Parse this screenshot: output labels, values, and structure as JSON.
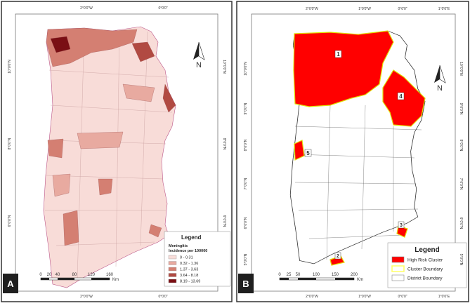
{
  "panel_a": {
    "label": "A",
    "top_labels": [
      "2°0'0\"W",
      "0°0'0\""
    ],
    "bottom_labels": [
      "2°0'0\"W",
      "0°0'0\""
    ],
    "left_labels": [
      "10°0'0\"N",
      "8°0'0\"N",
      "6°0'0\"N"
    ],
    "right_labels": [
      "10°0'0\"N",
      "8°0'0\"N",
      "6°0'0\"N"
    ],
    "north": "N",
    "scale_labels": [
      "0",
      "20",
      "40",
      "80",
      "120",
      "160"
    ],
    "scale_unit": "Km",
    "legend": {
      "title": "Legend",
      "subtitle": "Meningitis",
      "caption": "Incidence per 100000",
      "items": [
        {
          "label": "0 - 0.31",
          "color": "#f8dcd8"
        },
        {
          "label": "0.32 - 1.36",
          "color": "#e8aaa0"
        },
        {
          "label": "1.37 - 3.63",
          "color": "#d47f72"
        },
        {
          "label": "3.64 - 8.18",
          "color": "#b14a42"
        },
        {
          "label": "8.19 - 13.69",
          "color": "#7a0f14"
        }
      ]
    }
  },
  "panel_b": {
    "label": "B",
    "top_labels": [
      "2°0'0\"W",
      "1°0'0\"W",
      "0°0'0\"",
      "1°0'0\"E"
    ],
    "bottom_labels": [
      "2°0'0\"W",
      "1°0'0\"W",
      "0°0'0\"",
      "1°0'0\"E"
    ],
    "left_labels": [
      "10°0'0\"N",
      "9°0'0\"N",
      "8°0'0\"N",
      "7°0'0\"N",
      "6°0'0\"N",
      "5°0'0\"N"
    ],
    "right_labels": [
      "10°0'0\"N",
      "9°0'0\"N",
      "8°0'0\"N",
      "7°0'0\"N",
      "6°0'0\"N",
      "5°0'0\"N"
    ],
    "north": "N",
    "cluster_labels": [
      "1",
      "2",
      "3",
      "4",
      "5"
    ],
    "scale_labels": [
      "0",
      "25",
      "50",
      "100",
      "150",
      "200"
    ],
    "scale_unit": "Km",
    "legend": {
      "title": "Legend",
      "items": [
        {
          "label": "High Risk Cluster",
          "color": "#ff0000"
        },
        {
          "label": "Cluster Boundary",
          "color": "#ffff66"
        },
        {
          "label": "District Boundary",
          "color": "#ffffff"
        }
      ]
    }
  }
}
